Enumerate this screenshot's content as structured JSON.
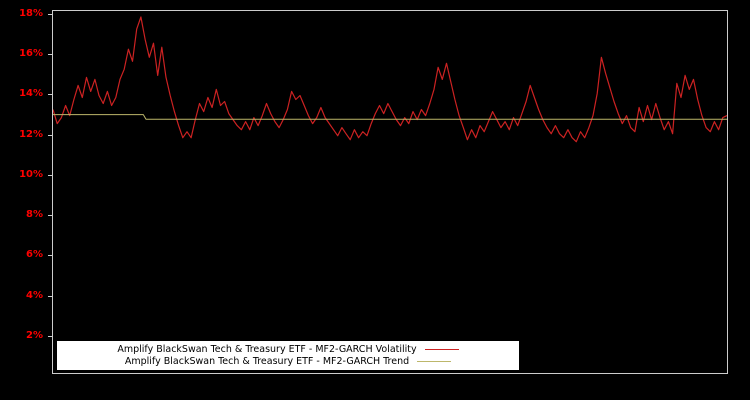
{
  "figure": {
    "background": "#000000",
    "plot_border_color": "#cccccc"
  },
  "y_axis": {
    "label_color": "#ff0000",
    "tick_labels": [
      "2%",
      "4%",
      "6%",
      "8%",
      "10%",
      "12%",
      "14%",
      "16%",
      "18%"
    ]
  },
  "legend": {
    "background": "#ffffff",
    "items": [
      {
        "label": "Amplify BlackSwan Tech & Treasury ETF - MF2-GARCH Volatility",
        "color": "#cc2222"
      },
      {
        "label": "Amplify BlackSwan Tech & Treasury ETF - MF2-GARCH Trend",
        "color": "#bdb76b"
      }
    ]
  },
  "chart_data": {
    "type": "line",
    "title": "",
    "xlabel": "",
    "ylabel": "",
    "ylim": [
      0.2,
      18.2
    ],
    "yticks": [
      2,
      4,
      6,
      8,
      10,
      12,
      14,
      16,
      18
    ],
    "ytick_format": "percent",
    "grid": false,
    "legend_position": "bottom-left-inside",
    "series": [
      {
        "name": "Amplify BlackSwan Tech & Treasury ETF - MF2-GARCH Volatility",
        "color": "#cc2222",
        "stroke_width": 1.2,
        "values": [
          13.3,
          12.6,
          12.9,
          13.5,
          13.0,
          13.8,
          14.5,
          13.9,
          14.9,
          14.2,
          14.8,
          14.0,
          13.6,
          14.2,
          13.5,
          13.9,
          14.8,
          15.3,
          16.3,
          15.7,
          17.3,
          17.9,
          16.8,
          15.9,
          16.6,
          15.0,
          16.4,
          14.9,
          14.0,
          13.2,
          12.5,
          11.9,
          12.2,
          11.9,
          12.8,
          13.6,
          13.2,
          13.9,
          13.4,
          14.3,
          13.5,
          13.7,
          13.1,
          12.8,
          12.5,
          12.3,
          12.7,
          12.3,
          12.9,
          12.5,
          13.0,
          13.6,
          13.1,
          12.7,
          12.4,
          12.8,
          13.3,
          14.2,
          13.8,
          14.0,
          13.5,
          13.0,
          12.6,
          12.9,
          13.4,
          12.9,
          12.6,
          12.3,
          12.0,
          12.4,
          12.1,
          11.8,
          12.3,
          11.9,
          12.2,
          12.0,
          12.6,
          13.1,
          13.5,
          13.1,
          13.6,
          13.2,
          12.8,
          12.5,
          12.9,
          12.6,
          13.2,
          12.8,
          13.3,
          13.0,
          13.6,
          14.3,
          15.4,
          14.8,
          15.6,
          14.7,
          13.8,
          13.0,
          12.4,
          11.8,
          12.3,
          11.9,
          12.5,
          12.2,
          12.7,
          13.2,
          12.8,
          12.4,
          12.7,
          12.3,
          12.9,
          12.5,
          13.1,
          13.7,
          14.5,
          13.9,
          13.3,
          12.8,
          12.4,
          12.1,
          12.5,
          12.1,
          11.9,
          12.3,
          11.9,
          11.7,
          12.2,
          11.9,
          12.4,
          13.0,
          14.1,
          15.9,
          15.1,
          14.4,
          13.7,
          13.1,
          12.6,
          13.0,
          12.4,
          12.2,
          13.4,
          12.7,
          13.5,
          12.8,
          13.6,
          12.9,
          12.3,
          12.7,
          12.1,
          14.6,
          13.9,
          15.0,
          14.3,
          14.8,
          13.8,
          13.0,
          12.4,
          12.2,
          12.7,
          12.3,
          12.9,
          13.0
        ]
      },
      {
        "name": "Amplify BlackSwan Tech & Treasury ETF - MF2-GARCH Trend",
        "color": "#bdb76b",
        "stroke_width": 1,
        "x": [
          0,
          0.134,
          0.138,
          1
        ],
        "values": [
          13.05,
          13.05,
          12.82,
          12.82
        ]
      }
    ]
  }
}
